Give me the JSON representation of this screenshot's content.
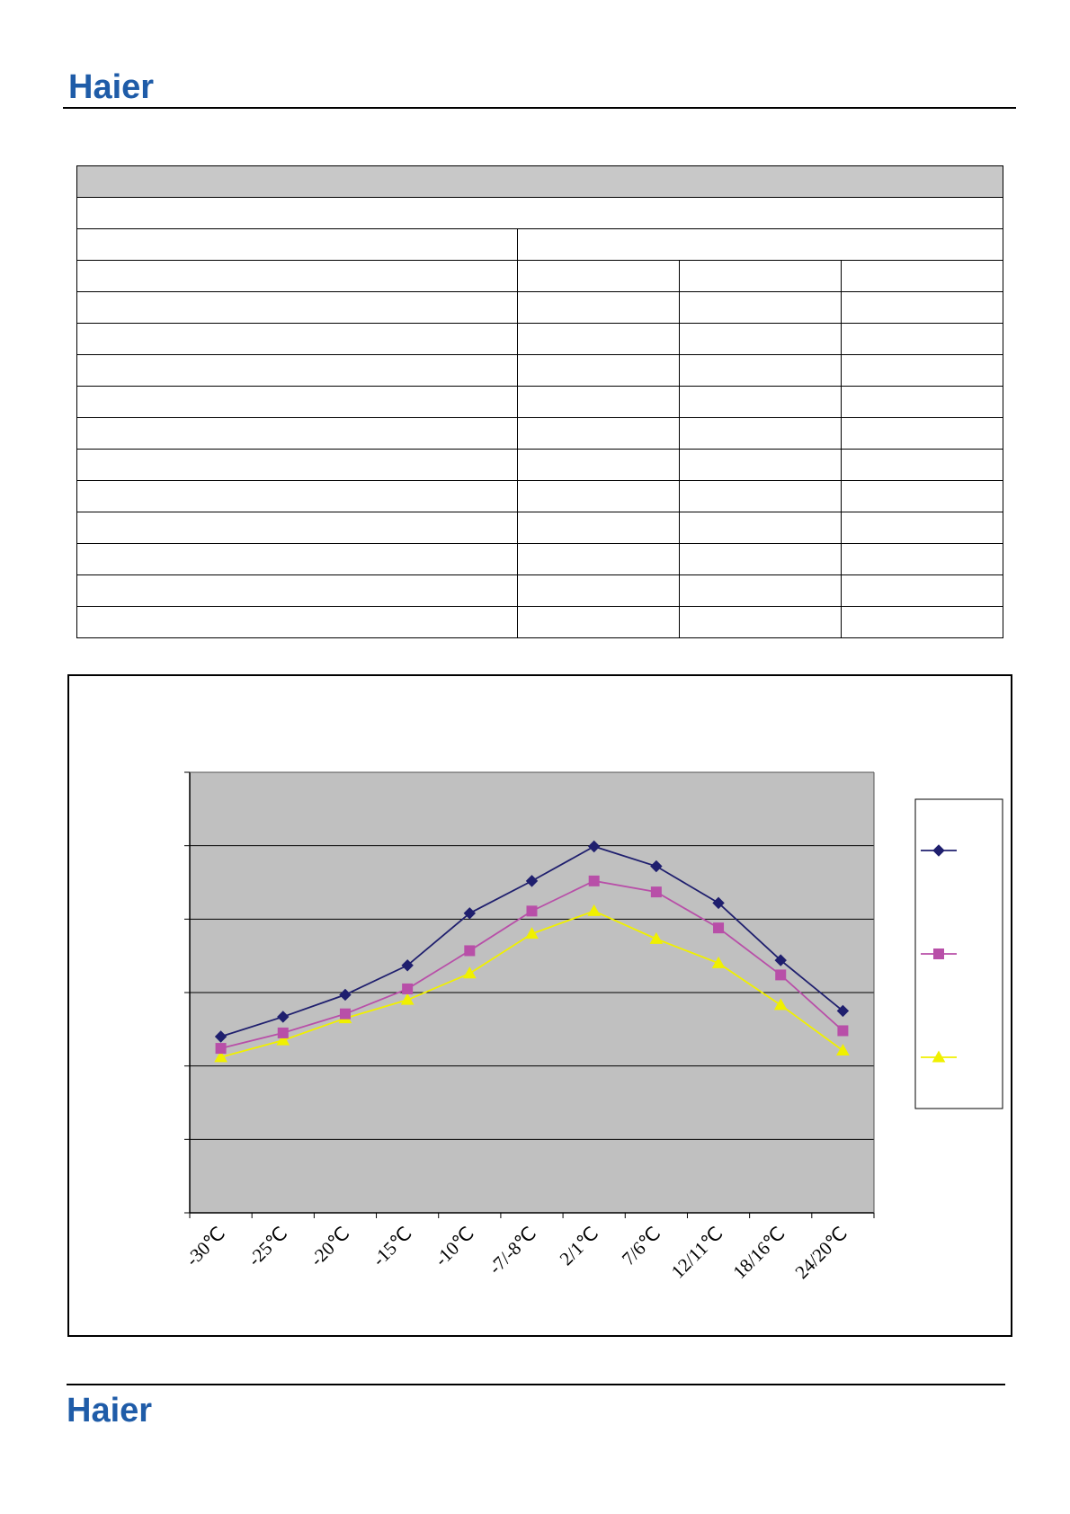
{
  "brand": {
    "logo_text": "Haier",
    "logo_color": "#1f5ca8"
  },
  "table": {
    "rows": 15
  },
  "chart_data": {
    "type": "line",
    "title": "",
    "xlabel": "",
    "ylabel": "",
    "categories": [
      "-30℃",
      "-25℃",
      "-20℃",
      "-15℃",
      "-10℃",
      "-7/-8℃",
      "2/1℃",
      "7/6℃",
      "12/11℃",
      "18/16℃",
      "24/20℃"
    ],
    "ylim": [
      0,
      6
    ],
    "grid": true,
    "legend_position": "right",
    "plot_background": "#c0c0c0",
    "series": [
      {
        "marker": "diamond",
        "color": "#1f1f6e",
        "values": [
          2.4,
          2.67,
          2.97,
          3.37,
          4.08,
          4.52,
          4.99,
          4.72,
          4.22,
          3.44,
          2.75
        ]
      },
      {
        "marker": "square",
        "color": "#b84fa8",
        "values": [
          2.24,
          2.45,
          2.71,
          3.05,
          3.57,
          4.11,
          4.52,
          4.37,
          3.88,
          3.24,
          2.48
        ]
      },
      {
        "marker": "triangle",
        "color": "#f0f000",
        "values": [
          2.12,
          2.35,
          2.65,
          2.9,
          3.26,
          3.8,
          4.11,
          3.73,
          3.4,
          2.83,
          2.21
        ]
      }
    ]
  }
}
